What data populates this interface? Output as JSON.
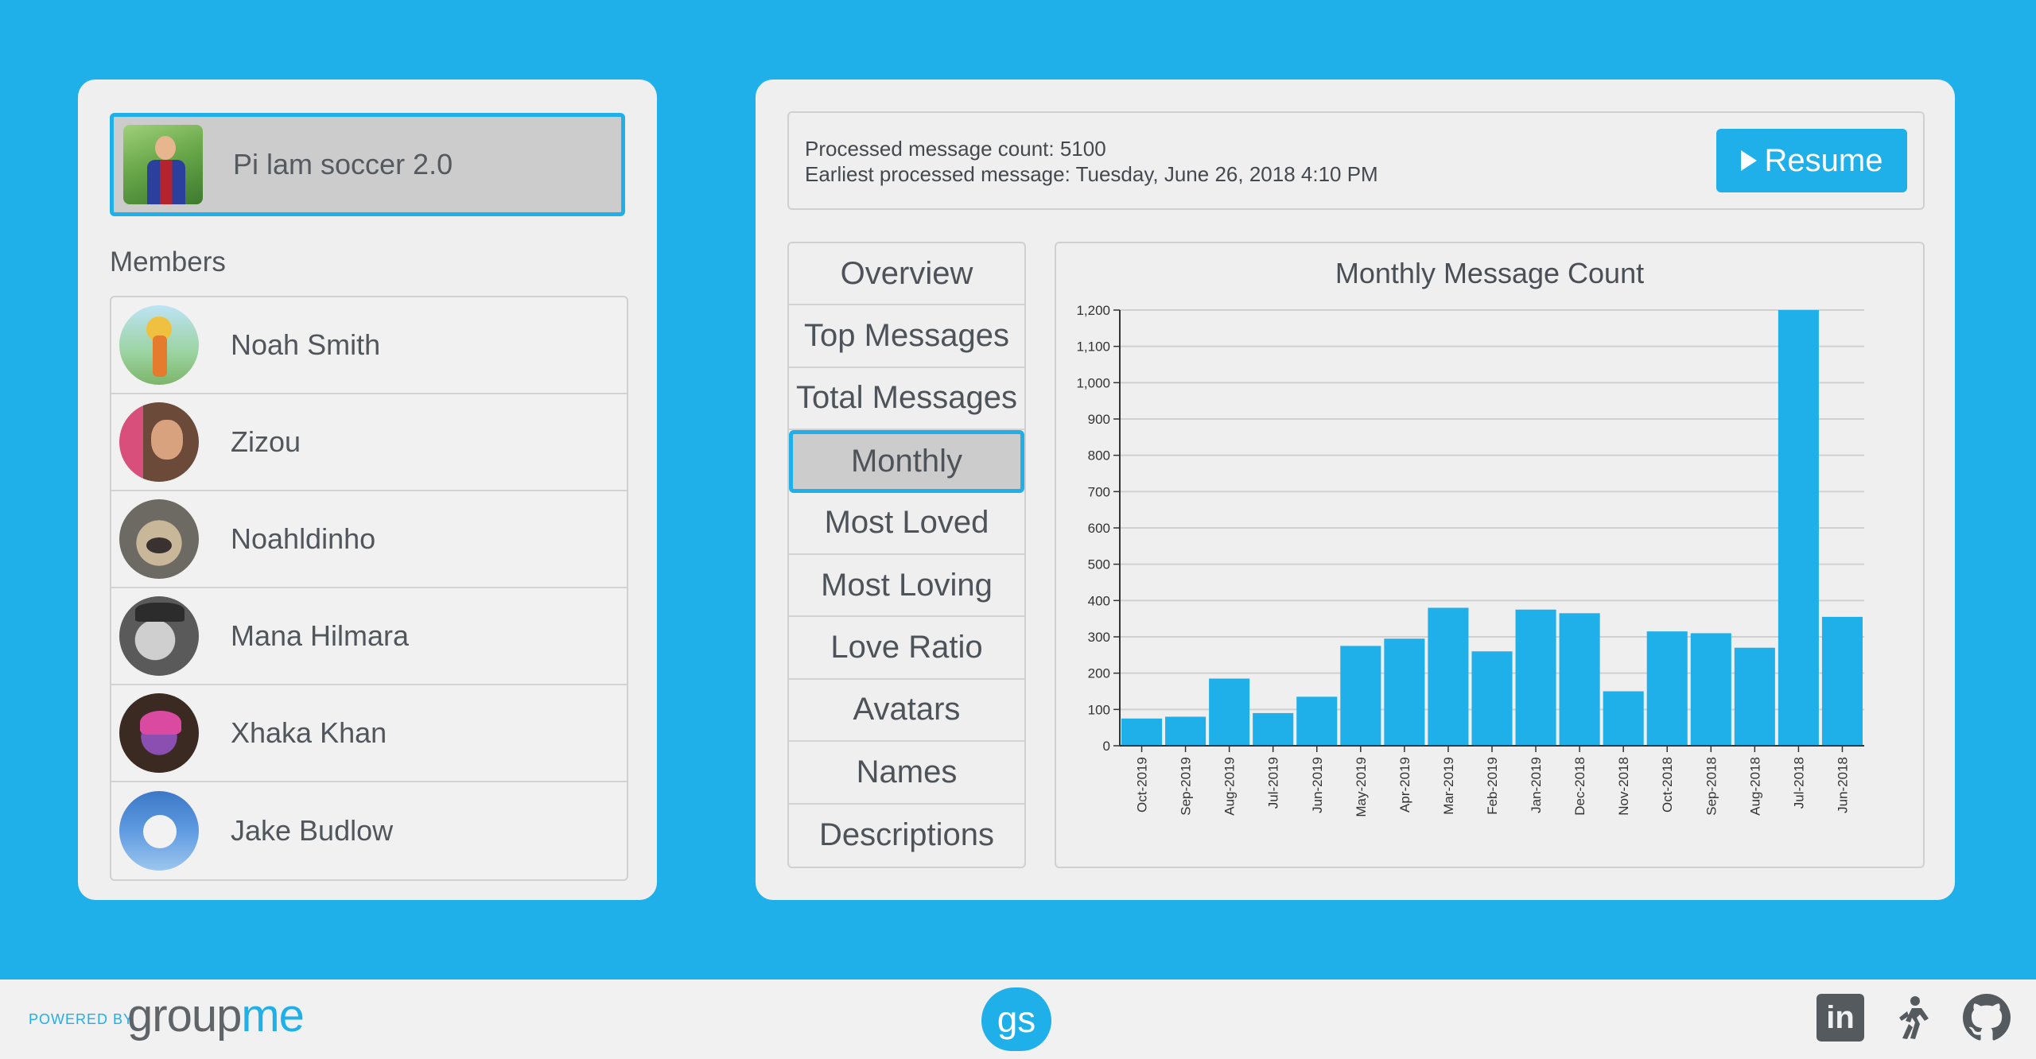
{
  "group": {
    "name": "Pi lam soccer 2.0"
  },
  "members": {
    "label": "Members",
    "items": [
      {
        "name": "Noah Smith"
      },
      {
        "name": "Zizou"
      },
      {
        "name": "Noahldinho"
      },
      {
        "name": "Mana Hilmara"
      },
      {
        "name": "Xhaka Khan"
      },
      {
        "name": "Jake Budlow"
      }
    ]
  },
  "status": {
    "processed": "Processed message count: 5100",
    "earliest": "Earliest processed message: Tuesday, June 26, 2018 4:10 PM",
    "resume_label": "Resume"
  },
  "tabs": [
    {
      "label": "Overview",
      "active": false
    },
    {
      "label": "Top Messages",
      "active": false
    },
    {
      "label": "Total Messages",
      "active": false
    },
    {
      "label": "Monthly",
      "active": true
    },
    {
      "label": "Most Loved",
      "active": false
    },
    {
      "label": "Most Loving",
      "active": false
    },
    {
      "label": "Love Ratio",
      "active": false
    },
    {
      "label": "Avatars",
      "active": false
    },
    {
      "label": "Names",
      "active": false
    },
    {
      "label": "Descriptions",
      "active": false
    }
  ],
  "chart_data": {
    "type": "bar",
    "title": "Monthly Message Count",
    "categories": [
      "Oct-2019",
      "Sep-2019",
      "Aug-2019",
      "Jul-2019",
      "Jun-2019",
      "May-2019",
      "Apr-2019",
      "Mar-2019",
      "Feb-2019",
      "Jan-2019",
      "Dec-2018",
      "Nov-2018",
      "Oct-2018",
      "Sep-2018",
      "Aug-2018",
      "Jul-2018",
      "Jun-2018"
    ],
    "values": [
      75,
      80,
      185,
      90,
      135,
      275,
      295,
      380,
      260,
      375,
      365,
      150,
      315,
      310,
      270,
      1200,
      355
    ],
    "ylim": [
      0,
      1200
    ],
    "yticks": [
      0,
      100,
      200,
      300,
      400,
      500,
      600,
      700,
      800,
      900,
      1000,
      1100,
      1200
    ],
    "ytick_labels": [
      "0",
      "100",
      "200",
      "300",
      "400",
      "500",
      "600",
      "700",
      "800",
      "900",
      "1,000",
      "1,100",
      "1,200"
    ],
    "grid": true,
    "color": "#1fb0ea"
  },
  "footer": {
    "powered_by": "POWERED BY",
    "groupme_part1": "group",
    "groupme_part2": "me",
    "gs_logo": "gs",
    "linkedin": "in"
  },
  "colors": {
    "accent": "#1fb0ea",
    "panel": "#efefef",
    "active": "#cccccc"
  }
}
